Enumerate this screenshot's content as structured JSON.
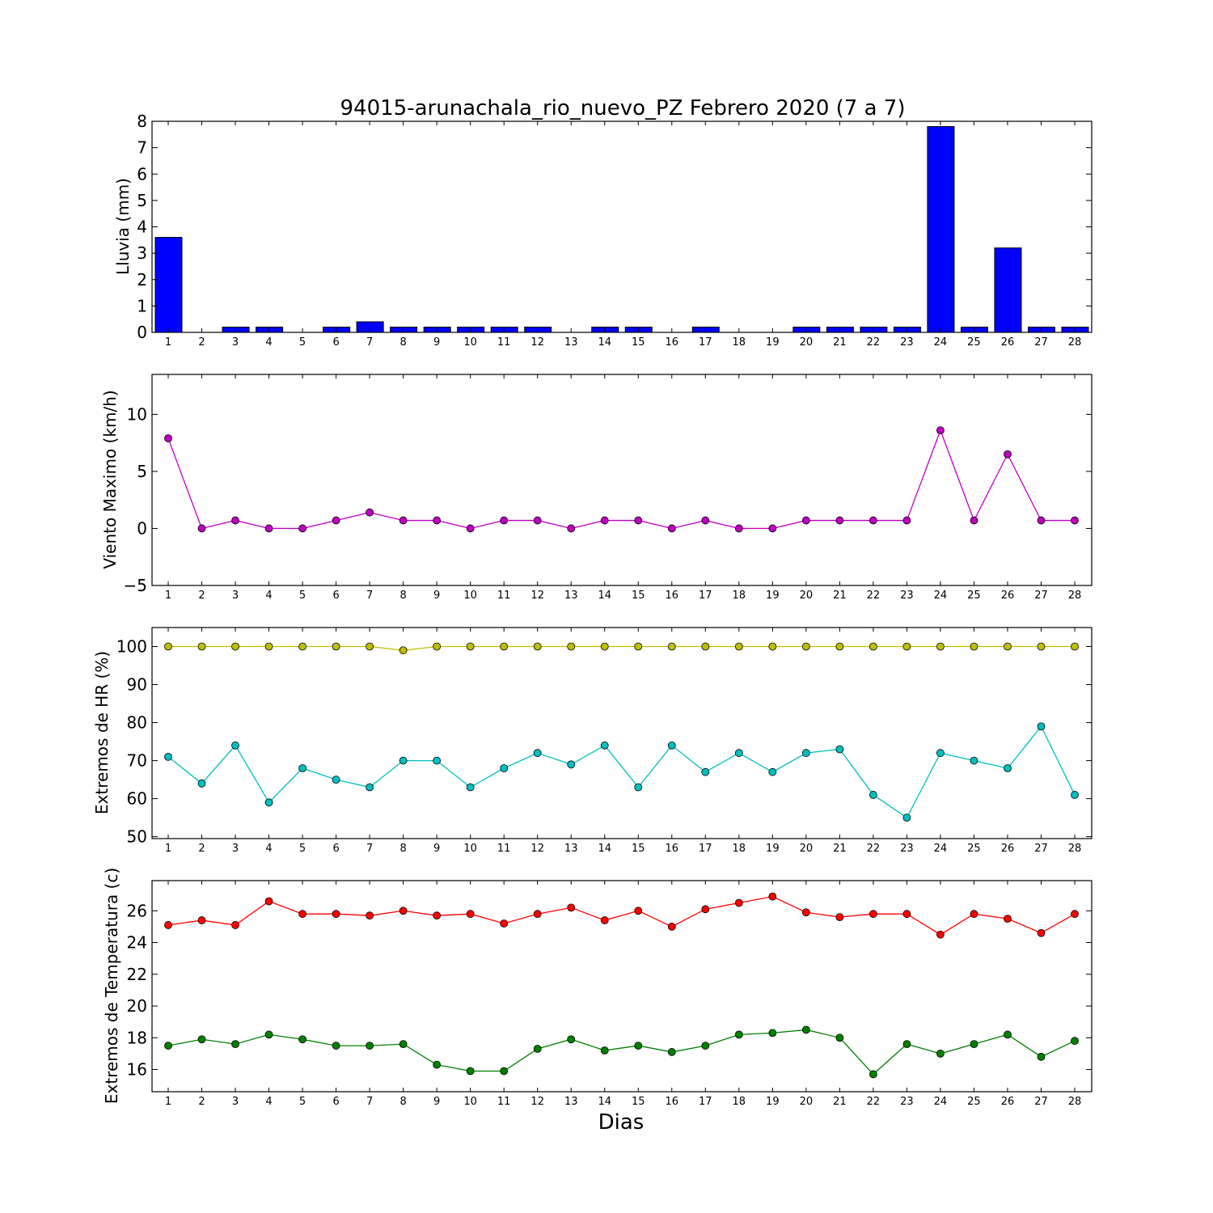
{
  "chart_data": [
    {
      "type": "bar",
      "title": "94015-arunachala_rio_nuevo_PZ Febrero 2020  (7 a 7)",
      "ylabel": "Lluvia (mm)",
      "ylim": [
        0,
        8
      ],
      "yticks": [
        0,
        1,
        2,
        3,
        4,
        5,
        6,
        7,
        8
      ],
      "ytick_labels": [
        "0",
        "1",
        "2",
        "3",
        "4",
        "5",
        "6",
        "7",
        "8"
      ],
      "categories": [
        "1",
        "2",
        "3",
        "4",
        "5",
        "6",
        "7",
        "8",
        "9",
        "10",
        "11",
        "12",
        "13",
        "14",
        "15",
        "16",
        "17",
        "18",
        "19",
        "20",
        "21",
        "22",
        "23",
        "24",
        "25",
        "26",
        "27",
        "28"
      ],
      "series": [
        {
          "color": "#0000ff",
          "values": [
            3.6,
            0,
            0.2,
            0.2,
            0,
            0.2,
            0.4,
            0.2,
            0.2,
            0.2,
            0.2,
            0.2,
            0,
            0.2,
            0.2,
            0,
            0.2,
            0,
            0,
            0.2,
            0.2,
            0.2,
            0.2,
            7.8,
            0.2,
            3.2,
            0.2,
            0.2
          ]
        }
      ],
      "grid": false
    },
    {
      "type": "line",
      "ylabel": "Viento Maximo (km/h)",
      "ylim": [
        -5,
        13.5
      ],
      "yticks": [
        -5,
        0,
        5,
        10
      ],
      "ytick_labels": [
        "−5",
        "0",
        "5",
        "10"
      ],
      "categories": [
        "1",
        "2",
        "3",
        "4",
        "5",
        "6",
        "7",
        "8",
        "9",
        "10",
        "11",
        "12",
        "13",
        "14",
        "15",
        "16",
        "17",
        "18",
        "19",
        "20",
        "21",
        "22",
        "23",
        "24",
        "25",
        "26",
        "27",
        "28"
      ],
      "series": [
        {
          "color": "#bf00bf",
          "values": [
            7.9,
            0,
            0.7,
            0,
            0,
            0.7,
            1.4,
            0.7,
            0.7,
            0,
            0.7,
            0.7,
            0,
            0.7,
            0.7,
            0,
            0.7,
            0,
            0,
            0.7,
            0.7,
            0.7,
            0.7,
            8.6,
            0.7,
            6.5,
            0.7,
            0.7
          ]
        }
      ],
      "grid": false
    },
    {
      "type": "line",
      "ylabel": "Extremos de HR (%)",
      "ylim": [
        49.5,
        105
      ],
      "yticks": [
        50,
        60,
        70,
        80,
        90,
        100
      ],
      "ytick_labels": [
        "50",
        "60",
        "70",
        "80",
        "90",
        "100"
      ],
      "categories": [
        "1",
        "2",
        "3",
        "4",
        "5",
        "6",
        "7",
        "8",
        "9",
        "10",
        "11",
        "12",
        "13",
        "14",
        "15",
        "16",
        "17",
        "18",
        "19",
        "20",
        "21",
        "22",
        "23",
        "24",
        "25",
        "26",
        "27",
        "28"
      ],
      "series": [
        {
          "color": "#bfbf00",
          "values": [
            100,
            100,
            100,
            100,
            100,
            100,
            100,
            99,
            100,
            100,
            100,
            100,
            100,
            100,
            100,
            100,
            100,
            100,
            100,
            100,
            100,
            100,
            100,
            100,
            100,
            100,
            100,
            100
          ]
        },
        {
          "color": "#00bfbf",
          "values": [
            71,
            64,
            74,
            59,
            68,
            65,
            63,
            70,
            70,
            63,
            68,
            72,
            69,
            74,
            63,
            74,
            67,
            72,
            67,
            72,
            73,
            61,
            55,
            72,
            70,
            68,
            79,
            61
          ]
        }
      ],
      "grid": false
    },
    {
      "type": "line",
      "ylabel": "Extremos de Temperatura (c)",
      "xlabel": "Dias",
      "ylim": [
        14.6,
        27.9
      ],
      "yticks": [
        16,
        18,
        20,
        22,
        24,
        26
      ],
      "ytick_labels": [
        "16",
        "18",
        "20",
        "22",
        "24",
        "26"
      ],
      "categories": [
        "1",
        "2",
        "3",
        "4",
        "5",
        "6",
        "7",
        "8",
        "9",
        "10",
        "11",
        "12",
        "13",
        "14",
        "15",
        "16",
        "17",
        "18",
        "19",
        "20",
        "21",
        "22",
        "23",
        "24",
        "25",
        "26",
        "27",
        "28"
      ],
      "series": [
        {
          "color": "#ff0000",
          "values": [
            25.1,
            25.4,
            25.1,
            26.6,
            25.8,
            25.8,
            25.7,
            26.0,
            25.7,
            25.8,
            25.2,
            25.8,
            26.2,
            25.4,
            26.0,
            25.0,
            26.1,
            26.5,
            26.9,
            25.9,
            25.6,
            25.8,
            25.8,
            24.5,
            25.8,
            25.5,
            24.6,
            25.8
          ]
        },
        {
          "color": "#008000",
          "values": [
            17.5,
            17.9,
            17.6,
            18.2,
            17.9,
            17.5,
            17.5,
            17.6,
            16.3,
            15.9,
            15.9,
            17.3,
            17.9,
            17.2,
            17.5,
            17.1,
            17.5,
            18.2,
            18.3,
            18.5,
            18.0,
            15.7,
            17.6,
            17.0,
            17.6,
            18.2,
            16.8,
            17.8
          ]
        }
      ],
      "grid": false
    }
  ]
}
